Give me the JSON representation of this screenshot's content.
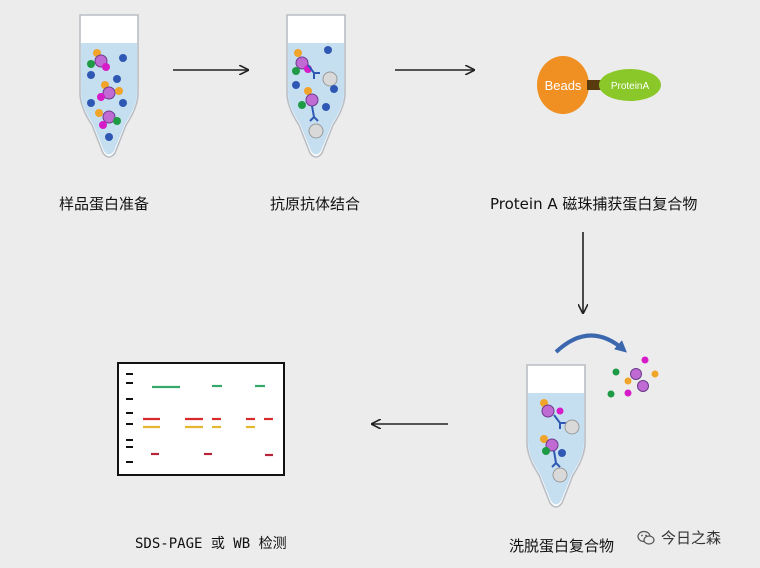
{
  "steps": {
    "step1_label": "样品蛋白准备",
    "step2_label": "抗原抗体结合",
    "step3_label": "Protein A 磁珠捕获蛋白复合物",
    "step4_label": "洗脱蛋白复合物",
    "step5_label": "SDS-PAGE 或 WB 检测"
  },
  "bead": {
    "beads_label": "Beads",
    "protein_label": "ProteinA"
  },
  "watermark": {
    "text": "今日之森",
    "icon": "wechat-bubble-icon"
  },
  "colors": {
    "background": "#ececec",
    "tube_liquid": "#c5dff0",
    "protein_purple": "#c06ad4",
    "protein_orange": "#f0a42a",
    "protein_blue": "#2f58b4",
    "protein_green": "#1f9a45",
    "protein_magenta": "#d61bc8",
    "beads_orange": "#f08f22",
    "proteinA_green": "#8ac82a",
    "band_green": "#35a86a",
    "band_red": "#d82a2a",
    "band_yellow": "#e4b632",
    "band_darkred": "#b7243a",
    "elution_arrow": "#3a67ad"
  }
}
